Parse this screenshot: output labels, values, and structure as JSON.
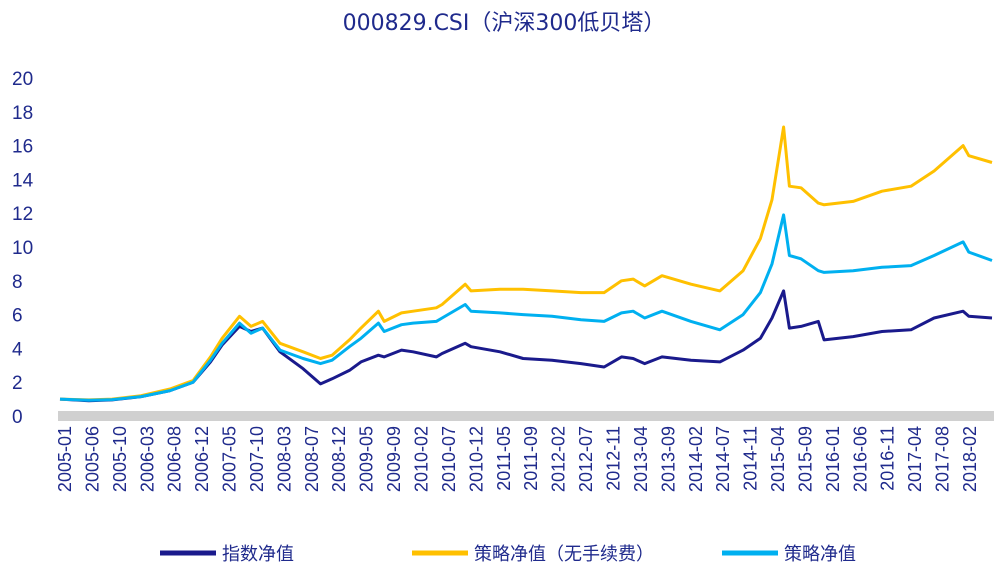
{
  "chart_data": {
    "type": "line",
    "title": "000829.CSI（沪深300低贝塔）",
    "ylim": [
      0,
      20
    ],
    "yticks": [
      "0",
      "2",
      "4",
      "6",
      "8",
      "10",
      "12",
      "14",
      "16",
      "18",
      "20"
    ],
    "x_ticks": [
      "2005-01",
      "2005-06",
      "2005-10",
      "2006-03",
      "2006-08",
      "2006-12",
      "2007-05",
      "2007-10",
      "2008-03",
      "2008-07",
      "2008-12",
      "2009-05",
      "2009-09",
      "2010-02",
      "2010-07",
      "2010-12",
      "2011-05",
      "2011-09",
      "2012-02",
      "2012-07",
      "2012-11",
      "2013-04",
      "2013-09",
      "2014-02",
      "2014-07",
      "2014-11",
      "2015-04",
      "2015-09",
      "2016-01",
      "2016-06",
      "2016-11",
      "2017-04",
      "2017-08",
      "2018-02"
    ],
    "x_start": "2005-01",
    "x_end": "2018-06",
    "grid": false,
    "legend_position": "bottom",
    "series": [
      {
        "name": "指数净值",
        "color": "#1a1a8c",
        "points": [
          [
            "2005-01",
            1.0
          ],
          [
            "2005-06",
            0.9
          ],
          [
            "2005-10",
            0.95
          ],
          [
            "2006-03",
            1.15
          ],
          [
            "2006-08",
            1.5
          ],
          [
            "2006-12",
            2.0
          ],
          [
            "2007-03",
            3.2
          ],
          [
            "2007-05",
            4.2
          ],
          [
            "2007-08",
            5.3
          ],
          [
            "2007-10",
            5.0
          ],
          [
            "2007-12",
            5.2
          ],
          [
            "2008-03",
            3.8
          ],
          [
            "2008-07",
            2.8
          ],
          [
            "2008-10",
            1.9
          ],
          [
            "2008-12",
            2.2
          ],
          [
            "2009-03",
            2.7
          ],
          [
            "2009-05",
            3.2
          ],
          [
            "2009-08",
            3.6
          ],
          [
            "2009-09",
            3.5
          ],
          [
            "2009-12",
            3.9
          ],
          [
            "2010-02",
            3.8
          ],
          [
            "2010-06",
            3.5
          ],
          [
            "2010-07",
            3.7
          ],
          [
            "2010-11",
            4.3
          ],
          [
            "2010-12",
            4.1
          ],
          [
            "2011-05",
            3.8
          ],
          [
            "2011-09",
            3.4
          ],
          [
            "2012-02",
            3.3
          ],
          [
            "2012-07",
            3.1
          ],
          [
            "2012-11",
            2.9
          ],
          [
            "2013-02",
            3.5
          ],
          [
            "2013-04",
            3.4
          ],
          [
            "2013-06",
            3.1
          ],
          [
            "2013-09",
            3.5
          ],
          [
            "2014-02",
            3.3
          ],
          [
            "2014-07",
            3.2
          ],
          [
            "2014-11",
            3.9
          ],
          [
            "2015-02",
            4.6
          ],
          [
            "2015-04",
            5.8
          ],
          [
            "2015-06",
            7.4
          ],
          [
            "2015-07",
            5.2
          ],
          [
            "2015-09",
            5.3
          ],
          [
            "2015-12",
            5.6
          ],
          [
            "2016-01",
            4.5
          ],
          [
            "2016-06",
            4.7
          ],
          [
            "2016-11",
            5.0
          ],
          [
            "2017-04",
            5.1
          ],
          [
            "2017-08",
            5.8
          ],
          [
            "2018-01",
            6.2
          ],
          [
            "2018-02",
            5.9
          ],
          [
            "2018-06",
            5.8
          ]
        ]
      },
      {
        "name": "策略净值（无手续费）",
        "color": "#ffc000",
        "points": [
          [
            "2005-01",
            1.0
          ],
          [
            "2005-06",
            0.95
          ],
          [
            "2005-10",
            1.0
          ],
          [
            "2006-03",
            1.2
          ],
          [
            "2006-08",
            1.6
          ],
          [
            "2006-12",
            2.1
          ],
          [
            "2007-03",
            3.5
          ],
          [
            "2007-05",
            4.6
          ],
          [
            "2007-08",
            5.9
          ],
          [
            "2007-10",
            5.3
          ],
          [
            "2007-12",
            5.6
          ],
          [
            "2008-03",
            4.3
          ],
          [
            "2008-07",
            3.8
          ],
          [
            "2008-10",
            3.4
          ],
          [
            "2008-12",
            3.6
          ],
          [
            "2009-03",
            4.5
          ],
          [
            "2009-05",
            5.2
          ],
          [
            "2009-08",
            6.2
          ],
          [
            "2009-09",
            5.6
          ],
          [
            "2009-12",
            6.1
          ],
          [
            "2010-02",
            6.2
          ],
          [
            "2010-06",
            6.4
          ],
          [
            "2010-07",
            6.6
          ],
          [
            "2010-11",
            7.8
          ],
          [
            "2010-12",
            7.4
          ],
          [
            "2011-05",
            7.5
          ],
          [
            "2011-09",
            7.5
          ],
          [
            "2012-02",
            7.4
          ],
          [
            "2012-07",
            7.3
          ],
          [
            "2012-11",
            7.3
          ],
          [
            "2013-02",
            8.0
          ],
          [
            "2013-04",
            8.1
          ],
          [
            "2013-06",
            7.7
          ],
          [
            "2013-09",
            8.3
          ],
          [
            "2014-02",
            7.8
          ],
          [
            "2014-07",
            7.4
          ],
          [
            "2014-11",
            8.6
          ],
          [
            "2015-02",
            10.5
          ],
          [
            "2015-04",
            12.8
          ],
          [
            "2015-06",
            17.1
          ],
          [
            "2015-07",
            13.6
          ],
          [
            "2015-09",
            13.5
          ],
          [
            "2015-12",
            12.6
          ],
          [
            "2016-01",
            12.5
          ],
          [
            "2016-06",
            12.7
          ],
          [
            "2016-11",
            13.3
          ],
          [
            "2017-04",
            13.6
          ],
          [
            "2017-08",
            14.5
          ],
          [
            "2018-01",
            16.0
          ],
          [
            "2018-02",
            15.4
          ],
          [
            "2018-06",
            15.0
          ]
        ]
      },
      {
        "name": "策略净值",
        "color": "#00b0f0",
        "points": [
          [
            "2005-01",
            1.0
          ],
          [
            "2005-06",
            0.93
          ],
          [
            "2005-10",
            0.97
          ],
          [
            "2006-03",
            1.15
          ],
          [
            "2006-08",
            1.5
          ],
          [
            "2006-12",
            2.0
          ],
          [
            "2007-03",
            3.3
          ],
          [
            "2007-05",
            4.3
          ],
          [
            "2007-08",
            5.5
          ],
          [
            "2007-10",
            4.9
          ],
          [
            "2007-12",
            5.2
          ],
          [
            "2008-03",
            3.9
          ],
          [
            "2008-07",
            3.4
          ],
          [
            "2008-10",
            3.1
          ],
          [
            "2008-12",
            3.3
          ],
          [
            "2009-03",
            4.1
          ],
          [
            "2009-05",
            4.6
          ],
          [
            "2009-08",
            5.5
          ],
          [
            "2009-09",
            5.0
          ],
          [
            "2009-12",
            5.4
          ],
          [
            "2010-02",
            5.5
          ],
          [
            "2010-06",
            5.6
          ],
          [
            "2010-07",
            5.8
          ],
          [
            "2010-11",
            6.6
          ],
          [
            "2010-12",
            6.2
          ],
          [
            "2011-05",
            6.1
          ],
          [
            "2011-09",
            6.0
          ],
          [
            "2012-02",
            5.9
          ],
          [
            "2012-07",
            5.7
          ],
          [
            "2012-11",
            5.6
          ],
          [
            "2013-02",
            6.1
          ],
          [
            "2013-04",
            6.2
          ],
          [
            "2013-06",
            5.8
          ],
          [
            "2013-09",
            6.2
          ],
          [
            "2014-02",
            5.6
          ],
          [
            "2014-07",
            5.1
          ],
          [
            "2014-11",
            6.0
          ],
          [
            "2015-02",
            7.3
          ],
          [
            "2015-04",
            9.0
          ],
          [
            "2015-06",
            11.9
          ],
          [
            "2015-07",
            9.5
          ],
          [
            "2015-09",
            9.3
          ],
          [
            "2015-12",
            8.6
          ],
          [
            "2016-01",
            8.5
          ],
          [
            "2016-06",
            8.6
          ],
          [
            "2016-11",
            8.8
          ],
          [
            "2017-04",
            8.9
          ],
          [
            "2017-08",
            9.5
          ],
          [
            "2018-01",
            10.3
          ],
          [
            "2018-02",
            9.7
          ],
          [
            "2018-06",
            9.2
          ]
        ]
      }
    ]
  }
}
